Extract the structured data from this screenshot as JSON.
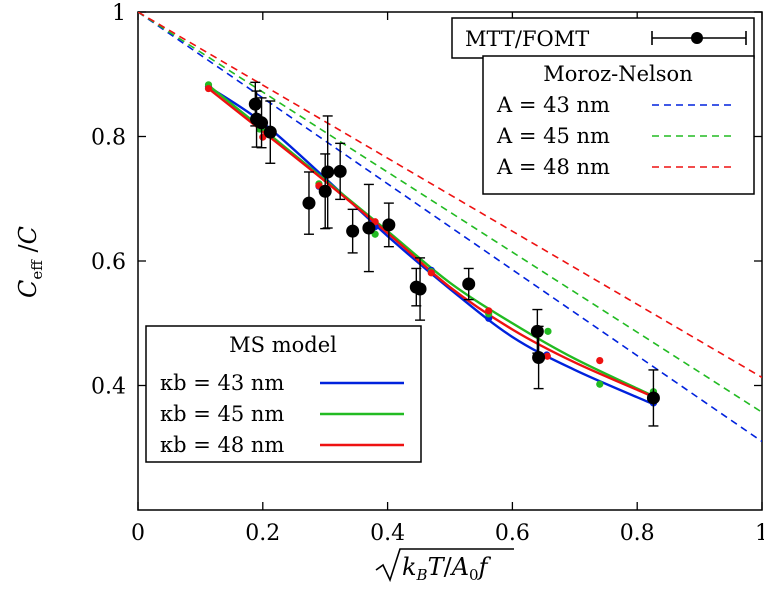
{
  "chart_data": {
    "type": "scatter",
    "xlim": [
      0,
      1
    ],
    "ylim": [
      0.2,
      1
    ],
    "x_ticks": [
      {
        "value": 0,
        "label": "0"
      },
      {
        "value": 0.2,
        "label": "0.2"
      },
      {
        "value": 0.4,
        "label": "0.4"
      },
      {
        "value": 0.6,
        "label": "0.6"
      },
      {
        "value": 0.8,
        "label": "0.8"
      },
      {
        "value": 1,
        "label": "1"
      }
    ],
    "y_ticks": [
      {
        "value": 0.4,
        "label": "0.4"
      },
      {
        "value": 0.6,
        "label": "0.6"
      },
      {
        "value": 0.8,
        "label": "0.8"
      },
      {
        "value": 1,
        "label": "1"
      }
    ],
    "xlabel": "√(k_B T / A₀ f)",
    "ylabel": "C_eff / C",
    "grid": false,
    "legend_experiment": {
      "label": "MTT/FOMT",
      "color": "#000000"
    },
    "legend_moroz": {
      "title": "Moroz-Nelson",
      "position": "top-right",
      "entries": [
        {
          "label": "A = 43 nm",
          "color": "#0022dd"
        },
        {
          "label": "A = 45 nm",
          "color": "#22bb22"
        },
        {
          "label": "A = 48 nm",
          "color": "#ee1111"
        }
      ]
    },
    "legend_ms": {
      "title": "MS model",
      "position": "bottom-left",
      "entries": [
        {
          "label": "κb = 43 nm",
          "color": "#0022dd"
        },
        {
          "label": "κb = 45 nm",
          "color": "#22bb22"
        },
        {
          "label": "κb = 48 nm",
          "color": "#ee1111"
        }
      ]
    },
    "experiment": [
      {
        "x": 0.188,
        "y": 0.852,
        "err": 0.035
      },
      {
        "x": 0.19,
        "y": 0.828,
        "err": 0.045
      },
      {
        "x": 0.198,
        "y": 0.822,
        "err": 0.04
      },
      {
        "x": 0.212,
        "y": 0.807,
        "err": 0.05
      },
      {
        "x": 0.274,
        "y": 0.693,
        "err": 0.05
      },
      {
        "x": 0.3,
        "y": 0.712,
        "err": 0.06
      },
      {
        "x": 0.304,
        "y": 0.743,
        "err": 0.09
      },
      {
        "x": 0.324,
        "y": 0.744,
        "err": 0.045
      },
      {
        "x": 0.344,
        "y": 0.648,
        "err": 0.035
      },
      {
        "x": 0.37,
        "y": 0.653,
        "err": 0.07
      },
      {
        "x": 0.402,
        "y": 0.658,
        "err": 0.035
      },
      {
        "x": 0.446,
        "y": 0.558,
        "err": 0.03
      },
      {
        "x": 0.452,
        "y": 0.555,
        "err": 0.05
      },
      {
        "x": 0.53,
        "y": 0.563,
        "err": 0.025
      },
      {
        "x": 0.64,
        "y": 0.487,
        "err": 0.035
      },
      {
        "x": 0.642,
        "y": 0.445,
        "err": 0.05
      },
      {
        "x": 0.826,
        "y": 0.38,
        "err": 0.045
      }
    ],
    "moroz_nelson": [
      {
        "name": "A = 43 nm",
        "color": "#0022dd",
        "x": [
          0,
          1
        ],
        "y": [
          1,
          0.31
        ]
      },
      {
        "name": "A = 45 nm",
        "color": "#22bb22",
        "x": [
          0,
          1
        ],
        "y": [
          1,
          0.357
        ]
      },
      {
        "name": "A = 48 nm",
        "color": "#ee1111",
        "x": [
          0,
          1
        ],
        "y": [
          1,
          0.413
        ]
      }
    ],
    "ms_model": [
      {
        "name": "κb = 43 nm",
        "color": "#0022dd",
        "x": [
          0.113,
          0.2,
          0.3,
          0.4,
          0.5,
          0.6,
          0.7,
          0.826
        ],
        "y": [
          0.88,
          0.822,
          0.733,
          0.64,
          0.555,
          0.478,
          0.425,
          0.37
        ]
      },
      {
        "name": "κb = 45 nm",
        "color": "#22bb22",
        "x": [
          0.113,
          0.2,
          0.3,
          0.4,
          0.5,
          0.6,
          0.7,
          0.826
        ],
        "y": [
          0.882,
          0.812,
          0.73,
          0.648,
          0.565,
          0.5,
          0.443,
          0.383
        ]
      },
      {
        "name": "κb = 48 nm",
        "color": "#ee1111",
        "x": [
          0.113,
          0.2,
          0.3,
          0.4,
          0.5,
          0.6,
          0.7,
          0.826
        ],
        "y": [
          0.877,
          0.808,
          0.728,
          0.645,
          0.558,
          0.49,
          0.437,
          0.382
        ]
      }
    ],
    "ms_points": [
      {
        "color": "#0022dd",
        "x": [
          0.113,
          0.195,
          0.29,
          0.38,
          0.47,
          0.562,
          0.655,
          0.826
        ],
        "y": [
          0.88,
          0.815,
          0.72,
          0.655,
          0.585,
          0.508,
          0.449,
          0.372
        ]
      },
      {
        "color": "#22bb22",
        "x": [
          0.113,
          0.195,
          0.29,
          0.38,
          0.47,
          0.562,
          0.657,
          0.74,
          0.826
        ],
        "y": [
          0.883,
          0.812,
          0.724,
          0.643,
          0.583,
          0.515,
          0.487,
          0.402,
          0.39
        ]
      },
      {
        "color": "#ee1111",
        "x": [
          0.113,
          0.2,
          0.29,
          0.38,
          0.47,
          0.562,
          0.656,
          0.74,
          0.826
        ],
        "y": [
          0.877,
          0.799,
          0.721,
          0.663,
          0.581,
          0.52,
          0.447,
          0.44,
          0.383
        ]
      }
    ]
  }
}
